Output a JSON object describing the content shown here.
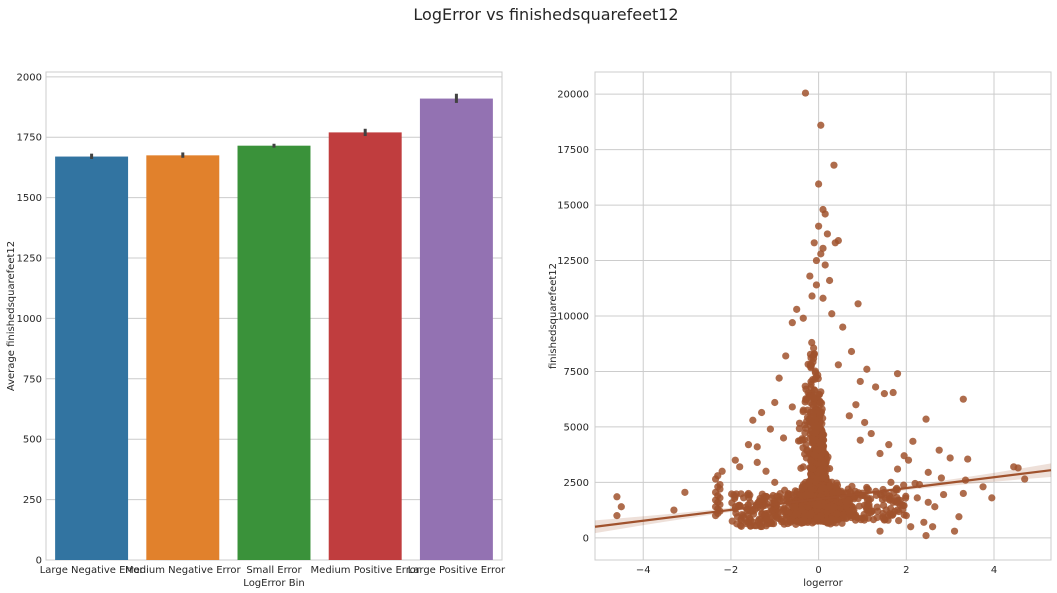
{
  "figure": {
    "title": "LogError vs finishedsquarefeet12"
  },
  "chart_data": [
    {
      "type": "bar",
      "xlabel": "LogError Bin",
      "ylabel": "Average finishedsquarefeet12",
      "ylim": [
        0,
        2020
      ],
      "yticks": [
        0,
        250,
        500,
        750,
        1000,
        1250,
        1500,
        1750,
        2000
      ],
      "grid": true,
      "categories": [
        "Large Negative Error",
        "Medium Negative Error",
        "Small Error",
        "Medium Positive Error",
        "Large Positive Error"
      ],
      "values": [
        1670,
        1675,
        1715,
        1770,
        1910
      ],
      "error_low": [
        1660,
        1665,
        1707,
        1755,
        1892
      ],
      "error_high": [
        1682,
        1687,
        1723,
        1785,
        1930
      ],
      "colors": [
        "#3274a1",
        "#e1812c",
        "#3a923a",
        "#c03d3e",
        "#9372b2"
      ],
      "error_color": "#424242"
    },
    {
      "type": "scatter",
      "xlabel": "logerror",
      "ylabel": "finishedsquarefeet12",
      "xlim": [
        -5.1,
        5.3
      ],
      "ylim": [
        -1000,
        21000
      ],
      "xticks": [
        -4,
        -2,
        0,
        2,
        4
      ],
      "yticks": [
        0,
        2500,
        5000,
        7500,
        10000,
        12500,
        15000,
        17500,
        20000
      ],
      "grid": true,
      "point_color": "#a0522d",
      "regression_line": {
        "x": [
          -5.1,
          5.3
        ],
        "y": [
          500,
          3050
        ]
      },
      "points": [
        [
          -0.3,
          20050
        ],
        [
          0.05,
          18600
        ],
        [
          0.35,
          16800
        ],
        [
          0.0,
          15950
        ],
        [
          0.1,
          14800
        ],
        [
          0.15,
          14600
        ],
        [
          0.0,
          14050
        ],
        [
          0.2,
          13700
        ],
        [
          0.45,
          13400
        ],
        [
          0.38,
          13300
        ],
        [
          -0.1,
          13300
        ],
        [
          0.1,
          13050
        ],
        [
          0.05,
          12800
        ],
        [
          -0.05,
          12500
        ],
        [
          0.15,
          12300
        ],
        [
          -0.2,
          11800
        ],
        [
          0.25,
          11600
        ],
        [
          -0.05,
          11400
        ],
        [
          0.9,
          10550
        ],
        [
          -0.15,
          10900
        ],
        [
          0.1,
          10800
        ],
        [
          -0.5,
          10300
        ],
        [
          0.3,
          10100
        ],
        [
          -0.35,
          9900
        ],
        [
          -0.6,
          9700
        ],
        [
          0.55,
          9500
        ],
        [
          0.75,
          8400
        ],
        [
          0.45,
          7800
        ],
        [
          1.1,
          7600
        ],
        [
          1.8,
          7400
        ],
        [
          -0.75,
          8200
        ],
        [
          -0.9,
          7200
        ],
        [
          0.95,
          7050
        ],
        [
          1.3,
          6800
        ],
        [
          1.5,
          6500
        ],
        [
          1.7,
          6550
        ],
        [
          3.3,
          6250
        ],
        [
          -1.0,
          6100
        ],
        [
          0.85,
          6000
        ],
        [
          -1.3,
          5650
        ],
        [
          -1.5,
          5300
        ],
        [
          2.45,
          5350
        ],
        [
          -0.6,
          5900
        ],
        [
          0.7,
          5500
        ],
        [
          1.05,
          5200
        ],
        [
          -1.1,
          4900
        ],
        [
          1.2,
          4700
        ],
        [
          -0.8,
          4500
        ],
        [
          0.95,
          4400
        ],
        [
          2.15,
          4350
        ],
        [
          1.6,
          4200
        ],
        [
          -1.6,
          4200
        ],
        [
          -1.4,
          4100
        ],
        [
          2.75,
          3950
        ],
        [
          1.4,
          3800
        ],
        [
          1.95,
          3700
        ],
        [
          3.0,
          3600
        ],
        [
          3.4,
          3550
        ],
        [
          2.05,
          3500
        ],
        [
          -1.9,
          3500
        ],
        [
          -1.4,
          3400
        ],
        [
          -1.8,
          3200
        ],
        [
          1.8,
          3100
        ],
        [
          -2.2,
          3000
        ],
        [
          4.45,
          3200
        ],
        [
          4.55,
          3150
        ],
        [
          -1.2,
          3000
        ],
        [
          2.5,
          2950
        ],
        [
          -2.3,
          2800
        ],
        [
          -2.35,
          2650
        ],
        [
          2.8,
          2700
        ],
        [
          3.35,
          2600
        ],
        [
          4.7,
          2650
        ],
        [
          -1.0,
          2500
        ],
        [
          1.65,
          2500
        ],
        [
          2.2,
          2450
        ],
        [
          2.3,
          2400
        ],
        [
          -2.25,
          2400
        ],
        [
          -2.3,
          2300
        ],
        [
          -2.25,
          2200
        ],
        [
          3.75,
          2300
        ],
        [
          -3.05,
          2050
        ],
        [
          -4.6,
          1850
        ],
        [
          -2.35,
          2050
        ],
        [
          -1.6,
          2000
        ],
        [
          2.85,
          1950
        ],
        [
          3.3,
          2000
        ],
        [
          3.95,
          1800
        ],
        [
          -2.3,
          1900
        ],
        [
          -2.25,
          1800
        ],
        [
          -2.35,
          1700
        ],
        [
          -2.3,
          1600
        ],
        [
          -2.25,
          1500
        ],
        [
          -2.35,
          1400
        ],
        [
          -2.3,
          1300
        ],
        [
          -2.25,
          1200
        ],
        [
          -2.3,
          1100
        ],
        [
          -2.35,
          1000
        ],
        [
          -3.3,
          1250
        ],
        [
          -4.5,
          1400
        ],
        [
          -4.6,
          1000
        ],
        [
          -1.9,
          1300
        ],
        [
          -1.5,
          1200
        ],
        [
          -1.2,
          1100
        ],
        [
          -1.85,
          950
        ],
        [
          -1.55,
          800
        ],
        [
          1.5,
          800
        ],
        [
          2.0,
          1000
        ],
        [
          2.4,
          700
        ],
        [
          2.6,
          500
        ],
        [
          3.1,
          300
        ],
        [
          2.5,
          1600
        ],
        [
          2.65,
          1400
        ],
        [
          1.9,
          1500
        ],
        [
          1.35,
          1200
        ],
        [
          1.05,
          900
        ],
        [
          2.1,
          500
        ],
        [
          1.4,
          300
        ],
        [
          2.45,
          100
        ],
        [
          3.2,
          950
        ],
        [
          2.25,
          1800
        ],
        [
          1.15,
          1700
        ]
      ]
    }
  ]
}
